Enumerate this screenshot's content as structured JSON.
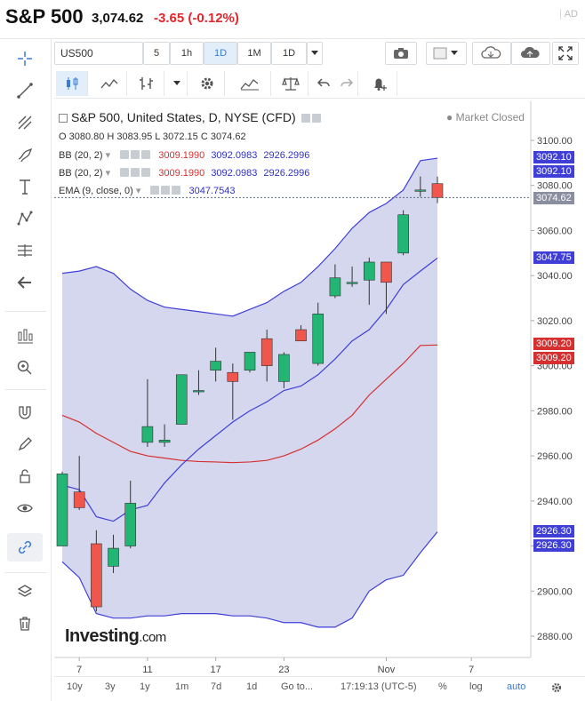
{
  "header": {
    "name": "S&P 500",
    "price": "3,074.62",
    "change": "-3.65 (-0.12%)",
    "ad": "AD"
  },
  "toolbar": {
    "symbol": "US500",
    "intervals": [
      "5",
      "1h",
      "1D",
      "1M",
      "1D"
    ],
    "active_interval": "1D"
  },
  "legend": {
    "title": "S&P 500, United States, D, NYSE (CFD)",
    "ohlc": "O 3080.80  H 3083.95  L 3072.15  C 3074.62",
    "bb1_label": "BB (20, 2)",
    "bb1_mid": "3009.1990",
    "bb1_up": "3092.0983",
    "bb1_low": "2926.2996",
    "bb2_label": "BB (20, 2)",
    "bb2_mid": "3009.1990",
    "bb2_up": "3092.0983",
    "bb2_low": "2926.2996",
    "ema_label": "EMA (9, close, 0)",
    "ema_val": "3047.7543",
    "market_status": "Market Closed"
  },
  "price_tags": {
    "upper1": "3092.10",
    "upper2": "3092.10",
    "last": "3074.62",
    "ema": "3047.75",
    "mid1": "3009.20",
    "mid2": "3009.20",
    "low1": "2926.30",
    "low2": "2926.30"
  },
  "colors": {
    "up": "#22b573",
    "down": "#f1564d",
    "band_fill": "#c7c9e8",
    "band_line": "#3f3fd8",
    "mid_line": "#d62f2f"
  },
  "watermark": {
    "brand": "Investing",
    "suffix": ".com"
  },
  "bottom_bar": {
    "ranges": [
      "10y",
      "3y",
      "1y",
      "1m",
      "7d",
      "1d",
      "Go to..."
    ],
    "time": "17:19:13 (UTC-5)",
    "percent": "%",
    "log": "log",
    "auto": "auto"
  },
  "chart_data": {
    "type": "candlestick",
    "y_ticks": [
      2880,
      2900,
      2920,
      2940,
      2960,
      2980,
      3000,
      3020,
      3040,
      3060,
      3080,
      3100
    ],
    "x_tick_labels": [
      "7",
      "11",
      "17",
      "23",
      "Nov",
      "7"
    ],
    "candles": [
      {
        "o": 2920,
        "h": 2953,
        "l": 2920,
        "c": 2952
      },
      {
        "o": 2944,
        "h": 2960,
        "l": 2936,
        "c": 2937
      },
      {
        "o": 2921,
        "h": 2927,
        "l": 2891,
        "c": 2893
      },
      {
        "o": 2911,
        "h": 2925,
        "l": 2908,
        "c": 2919
      },
      {
        "o": 2920,
        "h": 2949,
        "l": 2919,
        "c": 2939
      },
      {
        "o": 2966,
        "h": 2994,
        "l": 2964,
        "c": 2973
      },
      {
        "o": 2966,
        "h": 2974,
        "l": 2964,
        "c": 2967
      },
      {
        "o": 2974,
        "h": 2995,
        "l": 2974,
        "c": 2996
      },
      {
        "o": 2989,
        "h": 2998,
        "l": 2987,
        "c": 2989
      },
      {
        "o": 2998,
        "h": 3008,
        "l": 2993,
        "c": 3002
      },
      {
        "o": 2997,
        "h": 3001,
        "l": 2976,
        "c": 2993
      },
      {
        "o": 2998,
        "h": 3006,
        "l": 2997,
        "c": 3006
      },
      {
        "o": 3012,
        "h": 3016,
        "l": 2993,
        "c": 3000
      },
      {
        "o": 2993,
        "h": 3006,
        "l": 2990,
        "c": 3005
      },
      {
        "o": 3016,
        "h": 3018,
        "l": 3011,
        "c": 3011
      },
      {
        "o": 3001,
        "h": 3028,
        "l": 3000,
        "c": 3023
      },
      {
        "o": 3031,
        "h": 3045,
        "l": 3030,
        "c": 3039
      },
      {
        "o": 3037,
        "h": 3044,
        "l": 3035,
        "c": 3037
      },
      {
        "o": 3038,
        "h": 3048,
        "l": 3027,
        "c": 3046
      },
      {
        "o": 3046,
        "h": 3046,
        "l": 3023,
        "c": 3037
      },
      {
        "o": 3050,
        "h": 3069,
        "l": 3049,
        "c": 3067
      },
      {
        "o": 3078,
        "h": 3084,
        "l": 3075,
        "c": 3078
      },
      {
        "o": 3080.8,
        "h": 3083.95,
        "l": 3072.15,
        "c": 3074.62
      }
    ],
    "bb_upper": [
      3041,
      3042,
      3044,
      3041,
      3034,
      3029,
      3026,
      3025,
      3024,
      3023,
      3022,
      3025,
      3028,
      3033,
      3037,
      3044,
      3052,
      3061,
      3068,
      3072,
      3078,
      3091,
      3092.1
    ],
    "bb_mid": [
      2978,
      2975,
      2970,
      2966,
      2962,
      2960,
      2959,
      2958,
      2957.5,
      2957.3,
      2957,
      2957.3,
      2958,
      2960,
      2963,
      2967,
      2972,
      2978,
      2987,
      2994,
      3001,
      3009,
      3009.2
    ],
    "bb_lower": [
      2913,
      2906,
      2890,
      2888,
      2888,
      2889,
      2889,
      2890,
      2890,
      2890,
      2889,
      2889,
      2888,
      2886,
      2886,
      2884,
      2884,
      2888,
      2900,
      2905,
      2907,
      2917,
      2926.3
    ],
    "ema": [
      2947,
      2945,
      2933,
      2931,
      2936,
      2938,
      2948,
      2956,
      2963,
      2969,
      2975,
      2980,
      2984,
      2989,
      2991,
      2996,
      3003,
      3011,
      3016,
      3025,
      3036,
      3042,
      3047.75
    ],
    "ylim": [
      2873,
      3103
    ]
  }
}
